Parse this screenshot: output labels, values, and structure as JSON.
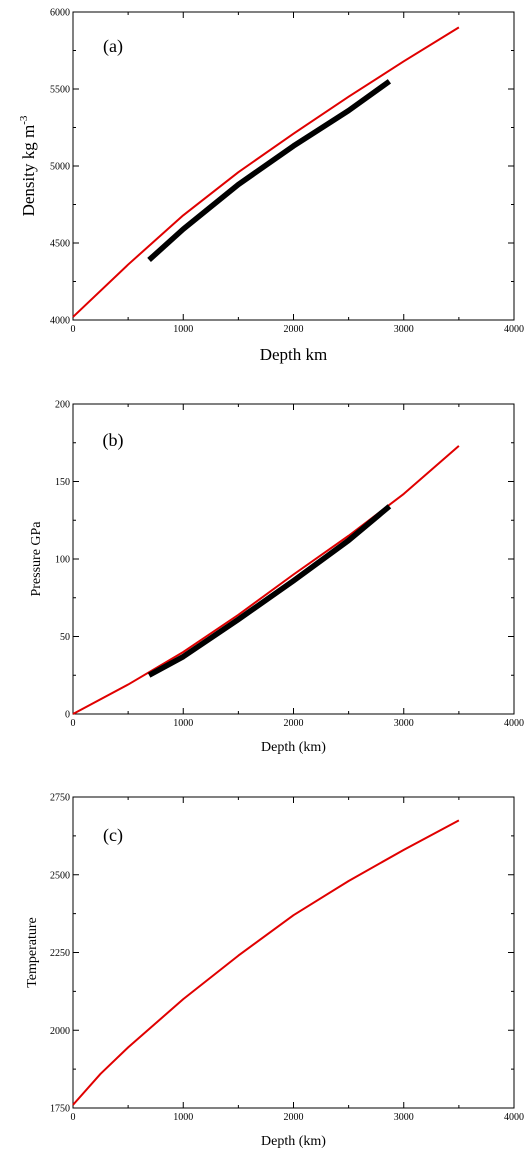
{
  "chart_data": [
    {
      "type": "line",
      "panel_label": "(a)",
      "xlabel": "Depth km",
      "ylabel": "Density kg m",
      "ylabel_sup": "-3",
      "xlim": [
        0,
        4000
      ],
      "ylim": [
        4000,
        6000
      ],
      "xticks": [
        0,
        1000,
        2000,
        3000,
        4000
      ],
      "yticks": [
        4000,
        4500,
        5000,
        5500,
        6000
      ],
      "grid": false,
      "series": [
        {
          "color": "#e00000",
          "width": "thin",
          "points": [
            [
              0,
              4020
            ],
            [
              500,
              4360
            ],
            [
              1000,
              4680
            ],
            [
              1500,
              4960
            ],
            [
              2000,
              5210
            ],
            [
              2500,
              5450
            ],
            [
              3000,
              5680
            ],
            [
              3500,
              5900
            ]
          ]
        },
        {
          "color": "#000000",
          "width": "thick",
          "points": [
            [
              690,
              4390
            ],
            [
              1000,
              4590
            ],
            [
              1500,
              4880
            ],
            [
              2000,
              5130
            ],
            [
              2500,
              5360
            ],
            [
              2870,
              5550
            ]
          ]
        }
      ]
    },
    {
      "type": "line",
      "panel_label": "(b)",
      "xlabel": "Depth (km)",
      "ylabel": "Pressure GPa",
      "xlim": [
        0,
        4000
      ],
      "ylim": [
        0,
        200
      ],
      "xticks": [
        0,
        1000,
        2000,
        3000,
        4000
      ],
      "yticks": [
        0,
        50,
        100,
        150,
        200
      ],
      "grid": false,
      "series": [
        {
          "color": "#e00000",
          "width": "thin",
          "points": [
            [
              0,
              0
            ],
            [
              500,
              19
            ],
            [
              1000,
              40
            ],
            [
              1500,
              64
            ],
            [
              2000,
              90
            ],
            [
              2500,
              115
            ],
            [
              3000,
              142
            ],
            [
              3500,
              173
            ]
          ]
        },
        {
          "color": "#000000",
          "width": "thick",
          "points": [
            [
              690,
              25
            ],
            [
              1000,
              37
            ],
            [
              1500,
              61
            ],
            [
              2000,
              86
            ],
            [
              2500,
              112
            ],
            [
              2870,
              134
            ]
          ]
        }
      ]
    },
    {
      "type": "line",
      "panel_label": "(c)",
      "xlabel": "Depth (km)",
      "ylabel": "Temperature",
      "xlim": [
        0,
        4000
      ],
      "ylim": [
        1750,
        2750
      ],
      "xticks": [
        0,
        1000,
        2000,
        3000,
        4000
      ],
      "yticks": [
        1750,
        2000,
        2250,
        2500,
        2750
      ],
      "grid": false,
      "series": [
        {
          "color": "#e00000",
          "width": "thin",
          "points": [
            [
              0,
              1760
            ],
            [
              250,
              1860
            ],
            [
              500,
              1945
            ],
            [
              1000,
              2100
            ],
            [
              1500,
              2240
            ],
            [
              2000,
              2370
            ],
            [
              2500,
              2480
            ],
            [
              3000,
              2580
            ],
            [
              3500,
              2675
            ]
          ]
        }
      ]
    }
  ]
}
